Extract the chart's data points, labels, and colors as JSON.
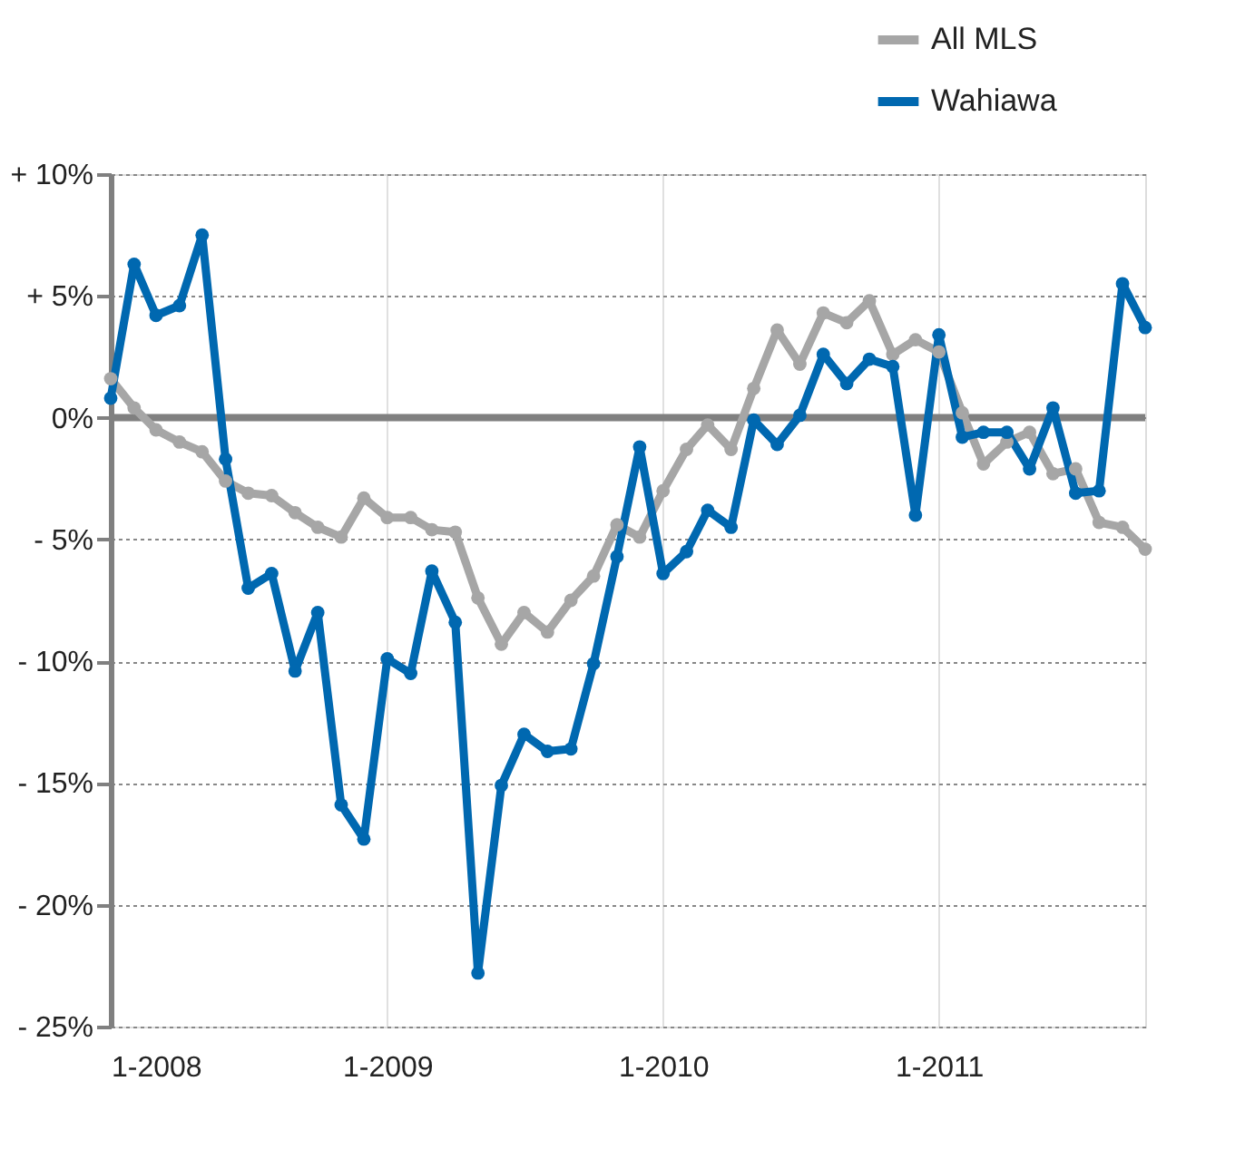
{
  "chart_data": {
    "type": "line",
    "x": [
      "2008-01",
      "2008-02",
      "2008-03",
      "2008-04",
      "2008-05",
      "2008-06",
      "2008-07",
      "2008-08",
      "2008-09",
      "2008-10",
      "2008-11",
      "2008-12",
      "2009-01",
      "2009-02",
      "2009-03",
      "2009-04",
      "2009-05",
      "2009-06",
      "2009-07",
      "2009-08",
      "2009-09",
      "2009-10",
      "2009-11",
      "2009-12",
      "2010-01",
      "2010-02",
      "2010-03",
      "2010-04",
      "2010-05",
      "2010-06",
      "2010-07",
      "2010-08",
      "2010-09",
      "2010-10",
      "2010-11",
      "2010-12",
      "2011-01",
      "2011-02",
      "2011-03",
      "2011-04",
      "2011-05",
      "2011-06",
      "2011-07",
      "2011-08",
      "2011-09",
      "2011-10"
    ],
    "series": [
      {
        "name": "All MLS",
        "color": "#a6a6a6",
        "values": [
          1.6,
          0.4,
          -0.5,
          -1.0,
          -1.4,
          -2.6,
          -3.1,
          -3.2,
          -3.9,
          -4.5,
          -4.9,
          -3.3,
          -4.1,
          -4.1,
          -4.6,
          -4.7,
          -7.4,
          -9.3,
          -8.0,
          -8.8,
          -7.5,
          -6.5,
          -4.4,
          -4.9,
          -3.0,
          -1.3,
          -0.3,
          -1.3,
          1.2,
          3.6,
          2.2,
          4.3,
          3.9,
          4.8,
          2.6,
          3.2,
          2.7,
          0.2,
          -1.9,
          -1.0,
          -0.6,
          -2.3,
          -2.1,
          -4.3,
          -4.5,
          -5.4
        ]
      },
      {
        "name": "Wahiawa",
        "color": "#0068b0",
        "values": [
          0.8,
          6.3,
          4.2,
          4.6,
          7.5,
          -1.7,
          -7.0,
          -6.4,
          -10.4,
          -8.0,
          -15.9,
          -17.3,
          -9.9,
          -10.5,
          -6.3,
          -8.4,
          -22.8,
          -15.1,
          -13.0,
          -13.7,
          -13.6,
          -10.1,
          -5.7,
          -1.2,
          -6.4,
          -5.5,
          -3.8,
          -4.5,
          -0.1,
          -1.1,
          0.1,
          2.6,
          1.4,
          2.4,
          2.1,
          -4.0,
          3.4,
          -0.8,
          -0.6,
          -0.6,
          -2.1,
          0.4,
          -3.1,
          -3.0,
          5.5,
          3.7
        ]
      }
    ],
    "xlim": [
      "2008-01",
      "2011-10"
    ],
    "xticks": [
      {
        "value": "2008-01",
        "label": "1-2008"
      },
      {
        "value": "2009-01",
        "label": "1-2009"
      },
      {
        "value": "2010-01",
        "label": "1-2010"
      },
      {
        "value": "2011-01",
        "label": "1-2011"
      }
    ],
    "ylim": [
      -25,
      10
    ],
    "yticks": [
      {
        "value": 10,
        "label": "+ 10%"
      },
      {
        "value": 5,
        "label": "+ 5%"
      },
      {
        "value": 0,
        "label": "0%"
      },
      {
        "value": -5,
        "label": "- 5%"
      },
      {
        "value": -10,
        "label": "- 10%"
      },
      {
        "value": -15,
        "label": "- 15%"
      },
      {
        "value": -20,
        "label": "- 20%"
      },
      {
        "value": -25,
        "label": "- 25%"
      }
    ],
    "ref_lines": [
      {
        "axis": "y",
        "value": 0,
        "color": "#808080"
      }
    ],
    "grid": true,
    "legend": "top right",
    "marker": "circle",
    "line_style": "solid"
  }
}
